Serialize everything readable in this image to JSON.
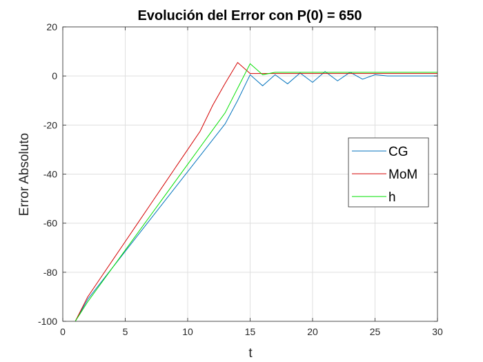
{
  "chart_data": {
    "type": "line",
    "title": "Evolución del Error con P(0) = 650",
    "xlabel": "t",
    "ylabel": "Error Absoluto",
    "xlim": [
      0,
      30
    ],
    "ylim": [
      -100,
      20
    ],
    "xticks": [
      0,
      5,
      10,
      15,
      20,
      25,
      30
    ],
    "yticks": [
      -100,
      -80,
      -60,
      -40,
      -20,
      0,
      20
    ],
    "grid": true,
    "legend_position": "right",
    "series": [
      {
        "name": "CG",
        "color": "#0072BD",
        "x": [
          1,
          2,
          3,
          4,
          5,
          6,
          7,
          8,
          9,
          10,
          11,
          12,
          13,
          14,
          15,
          16,
          17,
          18,
          19,
          20,
          21,
          22,
          23,
          24,
          25,
          26,
          27,
          28,
          29,
          30
        ],
        "y": [
          -100,
          -91,
          -84.5,
          -78,
          -71.5,
          -65,
          -58.5,
          -52,
          -45.5,
          -39,
          -32.5,
          -26,
          -19.5,
          -10,
          0.5,
          -4,
          0.5,
          -3.2,
          1.2,
          -2.6,
          1.8,
          -2,
          1.5,
          -1.3,
          0.5,
          0,
          0,
          0,
          0,
          0
        ]
      },
      {
        "name": "MoM",
        "color": "#D40000",
        "x": [
          1,
          2,
          3,
          4,
          5,
          6,
          7,
          8,
          9,
          10,
          11,
          12,
          13,
          14,
          15,
          16,
          17,
          18,
          19,
          20,
          21,
          22,
          23,
          24,
          25,
          26,
          27,
          28,
          29,
          30
        ],
        "y": [
          -100,
          -90,
          -82.5,
          -75,
          -67.5,
          -60,
          -52.5,
          -45,
          -37.5,
          -30,
          -22.5,
          -12,
          -3,
          5.5,
          1,
          1,
          1,
          1,
          1,
          1,
          1,
          1,
          1,
          1,
          1,
          1,
          1,
          1,
          1,
          1
        ]
      },
      {
        "name": "h",
        "color": "#00E000",
        "x": [
          1,
          2,
          3,
          4,
          5,
          6,
          7,
          8,
          9,
          10,
          11,
          12,
          13,
          14,
          15,
          16,
          17,
          18,
          19,
          20,
          21,
          22,
          23,
          24,
          25,
          26,
          27,
          28,
          29,
          30
        ],
        "y": [
          -100,
          -92,
          -85,
          -78,
          -71,
          -64,
          -57,
          -50,
          -43,
          -36,
          -29,
          -22,
          -15,
          -5,
          5,
          0.5,
          1.5,
          1.5,
          1.5,
          1.5,
          1.5,
          1.5,
          1.5,
          1.5,
          1.5,
          1.5,
          1.5,
          1.5,
          1.5,
          1.5
        ]
      }
    ]
  }
}
